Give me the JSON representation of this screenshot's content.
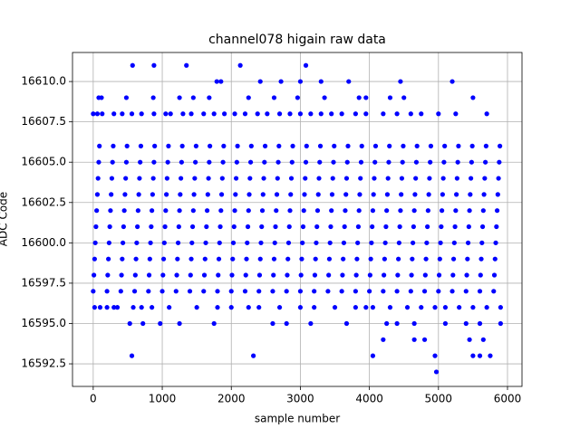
{
  "chart_data": {
    "type": "scatter",
    "title": "channel078 higain raw data",
    "xlabel": "sample number",
    "ylabel": "ADC Code",
    "color": "#0000ff",
    "grid": true,
    "xlim": [
      -300,
      6210
    ],
    "ylim": [
      16591.1,
      16611.8
    ],
    "xticks": [
      0,
      1000,
      2000,
      3000,
      4000,
      5000,
      6000
    ],
    "yticks": [
      16592.5,
      {
        "value": 16595,
        "label": "16595.0"
      },
      16597.5,
      {
        "value": 16600,
        "label": "16600.0"
      },
      16602.5,
      {
        "value": 16605,
        "label": "16605.0"
      },
      16607.5,
      {
        "value": 16610,
        "label": "16610.0"
      }
    ],
    "x": [
      0,
      200,
      400,
      600,
      800,
      1000,
      1200,
      1400,
      1600,
      1800,
      2000,
      2200,
      2400,
      2600,
      2800,
      3000,
      3200,
      3400,
      3600,
      3800,
      4000,
      4200,
      4400,
      4600,
      4800,
      5000,
      5200,
      5400,
      5600,
      5800,
      10,
      210,
      410,
      610,
      810,
      1010,
      1210,
      1410,
      1610,
      1810,
      2010,
      2210,
      2410,
      2610,
      2810,
      3010,
      3210,
      3410,
      3610,
      3810,
      4010,
      4210,
      4410,
      4610,
      4810,
      5010,
      5210,
      5410,
      5610,
      5810,
      20,
      220,
      420,
      620,
      820,
      1020,
      1220,
      1420,
      1620,
      1820,
      2020,
      2220,
      2420,
      2620,
      2820,
      3020,
      3220,
      3420,
      3620,
      3820,
      4020,
      4220,
      4420,
      4620,
      4820,
      5020,
      5220,
      5420,
      5620,
      5820,
      30,
      230,
      430,
      630,
      830,
      1030,
      1230,
      1430,
      1630,
      1830,
      2030,
      2230,
      2430,
      2630,
      2830,
      3030,
      3230,
      3430,
      3630,
      3830,
      4030,
      4230,
      4430,
      4630,
      4830,
      5030,
      5230,
      5430,
      5630,
      5830,
      40,
      240,
      440,
      640,
      840,
      1040,
      1240,
      1440,
      1640,
      1840,
      2040,
      2240,
      2440,
      2640,
      2840,
      3040,
      3240,
      3440,
      3640,
      3840,
      4040,
      4240,
      4440,
      4640,
      4840,
      5040,
      5240,
      5440,
      5640,
      5840,
      50,
      250,
      450,
      650,
      850,
      1050,
      1250,
      1450,
      1650,
      1850,
      2050,
      2250,
      2450,
      2650,
      2850,
      3050,
      3250,
      3450,
      3650,
      3850,
      4050,
      4250,
      4450,
      4650,
      4850,
      5050,
      5250,
      5450,
      5650,
      5850,
      60,
      260,
      460,
      660,
      860,
      1060,
      1260,
      1460,
      1660,
      1860,
      2060,
      2260,
      2460,
      2660,
      2860,
      3060,
      3260,
      3460,
      3660,
      3860,
      4060,
      4260,
      4460,
      4660,
      4860,
      5060,
      5260,
      5460,
      5660,
      5860,
      70,
      270,
      470,
      670,
      870,
      1070,
      1270,
      1470,
      1670,
      1870,
      2070,
      2270,
      2470,
      2670,
      2870,
      3070,
      3270,
      3470,
      3670,
      3870,
      4070,
      4270,
      4470,
      4670,
      4870,
      5070,
      5270,
      5470,
      5670,
      5870,
      80,
      280,
      480,
      680,
      880,
      1080,
      1280,
      1480,
      1680,
      1880,
      2080,
      2280,
      2480,
      2680,
      2880,
      3080,
      3280,
      3480,
      3680,
      3880,
      4080,
      4280,
      4480,
      4680,
      4880,
      5080,
      5280,
      5480,
      5680,
      5880,
      90,
      290,
      490,
      690,
      890,
      1090,
      1290,
      1490,
      1690,
      1890,
      2090,
      2290,
      2490,
      2690,
      2890,
      3090,
      3290,
      3490,
      3690,
      3890,
      4090,
      4290,
      4490,
      4690,
      4890,
      5090,
      5290,
      5490,
      5690,
      5890,
      0,
      60,
      130,
      300,
      420,
      560,
      700,
      880,
      1050,
      1120,
      1300,
      1420,
      1600,
      1750,
      1900,
      2050,
      2200,
      2380,
      2520,
      2700,
      2850,
      3000,
      3150,
      3300,
      3450,
      3600,
      3800,
      3950,
      4200,
      4400,
      4600,
      4750,
      5000,
      5250,
      5700,
      80,
      120,
      480,
      870,
      1250,
      1450,
      1680,
      2250,
      2620,
      2960,
      3350,
      3850,
      3950,
      4300,
      4500,
      5500,
      1790,
      1850,
      2420,
      2720,
      3000,
      3300,
      3700,
      4450,
      5200,
      570,
      880,
      1350,
      2130,
      3080,
      20,
      100,
      200,
      300,
      350,
      580,
      700,
      850,
      1100,
      1500,
      1800,
      2000,
      2250,
      2400,
      2700,
      3000,
      3200,
      3500,
      3800,
      3950,
      4050,
      4300,
      4550,
      4750,
      4950,
      5100,
      5300,
      5500,
      5700,
      5900,
      530,
      720,
      970,
      1250,
      1750,
      2600,
      2800,
      3150,
      3670,
      4250,
      4400,
      4650,
      5100,
      5400,
      5600,
      5900,
      4200,
      4650,
      4800,
      5450,
      5650,
      560,
      2320,
      4050,
      4950,
      5500,
      5600,
      5750,
      4970
    ],
    "y": [
      16597,
      16597,
      16597,
      16597,
      16597,
      16597,
      16597,
      16597,
      16597,
      16597,
      16597,
      16597,
      16597,
      16597,
      16597,
      16597,
      16597,
      16597,
      16597,
      16597,
      16597,
      16597,
      16597,
      16597,
      16597,
      16597,
      16597,
      16597,
      16597,
      16597,
      16598,
      16598,
      16598,
      16598,
      16598,
      16598,
      16598,
      16598,
      16598,
      16598,
      16598,
      16598,
      16598,
      16598,
      16598,
      16598,
      16598,
      16598,
      16598,
      16598,
      16598,
      16598,
      16598,
      16598,
      16598,
      16598,
      16598,
      16598,
      16598,
      16598,
      16599,
      16599,
      16599,
      16599,
      16599,
      16599,
      16599,
      16599,
      16599,
      16599,
      16599,
      16599,
      16599,
      16599,
      16599,
      16599,
      16599,
      16599,
      16599,
      16599,
      16599,
      16599,
      16599,
      16599,
      16599,
      16599,
      16599,
      16599,
      16599,
      16599,
      16600,
      16600,
      16600,
      16600,
      16600,
      16600,
      16600,
      16600,
      16600,
      16600,
      16600,
      16600,
      16600,
      16600,
      16600,
      16600,
      16600,
      16600,
      16600,
      16600,
      16600,
      16600,
      16600,
      16600,
      16600,
      16600,
      16600,
      16600,
      16600,
      16600,
      16601,
      16601,
      16601,
      16601,
      16601,
      16601,
      16601,
      16601,
      16601,
      16601,
      16601,
      16601,
      16601,
      16601,
      16601,
      16601,
      16601,
      16601,
      16601,
      16601,
      16601,
      16601,
      16601,
      16601,
      16601,
      16601,
      16601,
      16601,
      16601,
      16601,
      16602,
      16602,
      16602,
      16602,
      16602,
      16602,
      16602,
      16602,
      16602,
      16602,
      16602,
      16602,
      16602,
      16602,
      16602,
      16602,
      16602,
      16602,
      16602,
      16602,
      16602,
      16602,
      16602,
      16602,
      16602,
      16602,
      16602,
      16602,
      16602,
      16602,
      16603,
      16603,
      16603,
      16603,
      16603,
      16603,
      16603,
      16603,
      16603,
      16603,
      16603,
      16603,
      16603,
      16603,
      16603,
      16603,
      16603,
      16603,
      16603,
      16603,
      16603,
      16603,
      16603,
      16603,
      16603,
      16603,
      16603,
      16603,
      16603,
      16603,
      16604,
      16604,
      16604,
      16604,
      16604,
      16604,
      16604,
      16604,
      16604,
      16604,
      16604,
      16604,
      16604,
      16604,
      16604,
      16604,
      16604,
      16604,
      16604,
      16604,
      16604,
      16604,
      16604,
      16604,
      16604,
      16604,
      16604,
      16604,
      16604,
      16604,
      16605,
      16605,
      16605,
      16605,
      16605,
      16605,
      16605,
      16605,
      16605,
      16605,
      16605,
      16605,
      16605,
      16605,
      16605,
      16605,
      16605,
      16605,
      16605,
      16605,
      16605,
      16605,
      16605,
      16605,
      16605,
      16605,
      16605,
      16605,
      16605,
      16605,
      16606,
      16606,
      16606,
      16606,
      16606,
      16606,
      16606,
      16606,
      16606,
      16606,
      16606,
      16606,
      16606,
      16606,
      16606,
      16606,
      16606,
      16606,
      16606,
      16606,
      16606,
      16606,
      16606,
      16606,
      16606,
      16606,
      16606,
      16606,
      16606,
      16606,
      16608,
      16608,
      16608,
      16608,
      16608,
      16608,
      16608,
      16608,
      16608,
      16608,
      16608,
      16608,
      16608,
      16608,
      16608,
      16608,
      16608,
      16608,
      16608,
      16608,
      16608,
      16608,
      16608,
      16608,
      16608,
      16608,
      16608,
      16608,
      16608,
      16608,
      16608,
      16608,
      16608,
      16608,
      16608,
      16609,
      16609,
      16609,
      16609,
      16609,
      16609,
      16609,
      16609,
      16609,
      16609,
      16609,
      16609,
      16609,
      16609,
      16609,
      16609,
      16610,
      16610,
      16610,
      16610,
      16610,
      16610,
      16610,
      16610,
      16610,
      16611,
      16611,
      16611,
      16611,
      16611,
      16596,
      16596,
      16596,
      16596,
      16596,
      16596,
      16596,
      16596,
      16596,
      16596,
      16596,
      16596,
      16596,
      16596,
      16596,
      16596,
      16596,
      16596,
      16596,
      16596,
      16596,
      16596,
      16596,
      16596,
      16596,
      16596,
      16596,
      16596,
      16596,
      16596,
      16595,
      16595,
      16595,
      16595,
      16595,
      16595,
      16595,
      16595,
      16595,
      16595,
      16595,
      16595,
      16595,
      16595,
      16595,
      16595,
      16594,
      16594,
      16594,
      16594,
      16594,
      16593,
      16593,
      16593,
      16593,
      16593,
      16593,
      16593,
      16592
    ]
  }
}
